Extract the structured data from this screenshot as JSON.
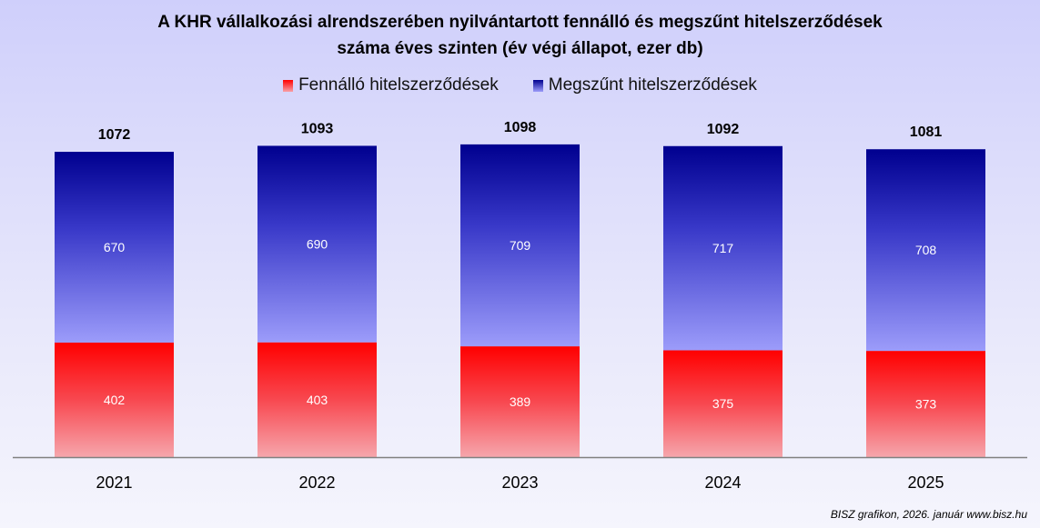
{
  "chart_data": {
    "type": "bar",
    "stacked": true,
    "title_lines": [
      "A KHR vállalkozási alrendszerében nyilvántartott fennálló és megszűnt hitelszerződések",
      "száma éves szinten (év végi állapot, ezer db)"
    ],
    "categories": [
      "2021",
      "2022",
      "2023",
      "2024",
      "2025"
    ],
    "series": [
      {
        "name": "Fennálló hitelszerződések",
        "color": "#ff0000",
        "values": [
          402,
          403,
          389,
          375,
          373
        ]
      },
      {
        "name": "Megszűnt hitelszerződések",
        "color": "#000090",
        "values": [
          670,
          690,
          709,
          717,
          708
        ]
      }
    ],
    "totals": [
      1072,
      1093,
      1098,
      1092,
      1081
    ],
    "xlabel": "",
    "ylabel": "",
    "ylim": [
      0,
      1200
    ],
    "grid": false,
    "legend_position": "top"
  },
  "footer": "BISZ grafikon, 2026. január www.bisz.hu"
}
